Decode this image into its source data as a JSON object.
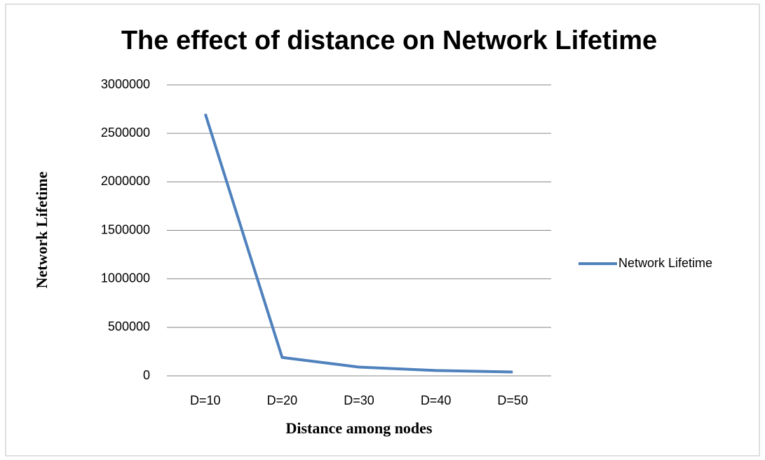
{
  "chart_data": {
    "type": "line",
    "title": "The effect of distance on Network Lifetime",
    "x_label": "Distance among nodes",
    "y_label": "Network Lifetime",
    "categories": [
      "D=10",
      "D=20",
      "D=30",
      "D=40",
      "D=50"
    ],
    "series": [
      {
        "name": "Network Lifetime",
        "color": "#4f81bd",
        "values": [
          2700000,
          190000,
          90000,
          55000,
          40000
        ]
      }
    ],
    "ylim": [
      0,
      3000000
    ],
    "yticks": [
      0,
      500000,
      1000000,
      1500000,
      2000000,
      2500000,
      3000000
    ],
    "grid": true,
    "legend": "right"
  }
}
